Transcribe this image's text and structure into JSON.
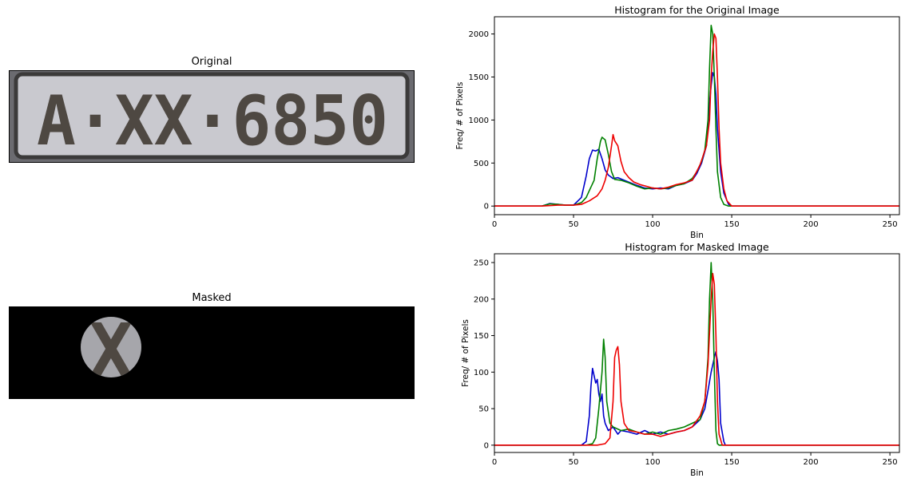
{
  "images": {
    "original": {
      "title": "Original",
      "plate_text": "A·XX·6850"
    },
    "masked": {
      "title": "Masked",
      "plate_text": "X"
    }
  },
  "colors": {
    "blue": "#0000cc",
    "green": "#008000",
    "red": "#ee0000"
  },
  "chart_data": [
    {
      "type": "line",
      "title": "Histogram for the Original Image",
      "xlabel": "Bin",
      "ylabel": "Freq/ # of Pixels",
      "xlim": [
        0,
        256
      ],
      "ylim": [
        -100,
        2200
      ],
      "xticks": [
        0,
        50,
        100,
        150,
        200,
        250
      ],
      "yticks": [
        0,
        500,
        1000,
        1500,
        2000
      ],
      "series": [
        {
          "color": "blue",
          "points": [
            [
              0,
              0
            ],
            [
              30,
              0
            ],
            [
              35,
              30
            ],
            [
              40,
              20
            ],
            [
              45,
              10
            ],
            [
              50,
              10
            ],
            [
              55,
              100
            ],
            [
              58,
              350
            ],
            [
              60,
              550
            ],
            [
              62,
              650
            ],
            [
              64,
              640
            ],
            [
              66,
              660
            ],
            [
              68,
              550
            ],
            [
              70,
              420
            ],
            [
              72,
              360
            ],
            [
              75,
              320
            ],
            [
              78,
              330
            ],
            [
              82,
              300
            ],
            [
              86,
              270
            ],
            [
              90,
              240
            ],
            [
              95,
              210
            ],
            [
              100,
              200
            ],
            [
              105,
              210
            ],
            [
              110,
              200
            ],
            [
              115,
              240
            ],
            [
              120,
              260
            ],
            [
              125,
              300
            ],
            [
              128,
              380
            ],
            [
              131,
              500
            ],
            [
              134,
              700
            ],
            [
              136,
              1200
            ],
            [
              137,
              1400
            ],
            [
              138,
              1550
            ],
            [
              139,
              1500
            ],
            [
              140,
              1300
            ],
            [
              141,
              900
            ],
            [
              143,
              400
            ],
            [
              145,
              150
            ],
            [
              148,
              20
            ],
            [
              150,
              0
            ],
            [
              256,
              0
            ]
          ]
        },
        {
          "color": "green",
          "points": [
            [
              0,
              0
            ],
            [
              30,
              0
            ],
            [
              35,
              25
            ],
            [
              40,
              20
            ],
            [
              45,
              10
            ],
            [
              50,
              10
            ],
            [
              55,
              40
            ],
            [
              58,
              100
            ],
            [
              60,
              180
            ],
            [
              63,
              300
            ],
            [
              65,
              550
            ],
            [
              67,
              750
            ],
            [
              68,
              800
            ],
            [
              70,
              770
            ],
            [
              72,
              600
            ],
            [
              74,
              400
            ],
            [
              76,
              310
            ],
            [
              80,
              300
            ],
            [
              85,
              270
            ],
            [
              90,
              230
            ],
            [
              95,
              200
            ],
            [
              100,
              210
            ],
            [
              105,
              200
            ],
            [
              110,
              210
            ],
            [
              115,
              240
            ],
            [
              120,
              260
            ],
            [
              125,
              320
            ],
            [
              128,
              400
            ],
            [
              131,
              520
            ],
            [
              133,
              650
            ],
            [
              135,
              1000
            ],
            [
              136,
              1600
            ],
            [
              137,
              2100
            ],
            [
              138,
              2000
            ],
            [
              139,
              1500
            ],
            [
              140,
              900
            ],
            [
              141,
              400
            ],
            [
              143,
              100
            ],
            [
              145,
              20
            ],
            [
              148,
              0
            ],
            [
              256,
              0
            ]
          ]
        },
        {
          "color": "red",
          "points": [
            [
              0,
              0
            ],
            [
              30,
              0
            ],
            [
              40,
              10
            ],
            [
              50,
              10
            ],
            [
              55,
              20
            ],
            [
              60,
              60
            ],
            [
              65,
              120
            ],
            [
              68,
              200
            ],
            [
              70,
              300
            ],
            [
              72,
              450
            ],
            [
              74,
              700
            ],
            [
              75,
              830
            ],
            [
              76,
              760
            ],
            [
              78,
              700
            ],
            [
              80,
              520
            ],
            [
              82,
              400
            ],
            [
              85,
              330
            ],
            [
              88,
              280
            ],
            [
              92,
              250
            ],
            [
              96,
              230
            ],
            [
              100,
              210
            ],
            [
              105,
              200
            ],
            [
              110,
              220
            ],
            [
              115,
              250
            ],
            [
              120,
              270
            ],
            [
              125,
              300
            ],
            [
              130,
              480
            ],
            [
              134,
              700
            ],
            [
              136,
              1000
            ],
            [
              137,
              1500
            ],
            [
              138,
              1800
            ],
            [
              139,
              2000
            ],
            [
              140,
              1950
            ],
            [
              141,
              1500
            ],
            [
              142,
              900
            ],
            [
              143,
              500
            ],
            [
              145,
              200
            ],
            [
              147,
              60
            ],
            [
              150,
              0
            ],
            [
              256,
              0
            ]
          ]
        }
      ]
    },
    {
      "type": "line",
      "title": "Histogram for Masked Image",
      "xlabel": "Bin",
      "ylabel": "Freq/ # of Pixels",
      "xlim": [
        0,
        256
      ],
      "ylim": [
        -10,
        262
      ],
      "xticks": [
        0,
        50,
        100,
        150,
        200,
        250
      ],
      "yticks": [
        0,
        50,
        100,
        150,
        200,
        250
      ],
      "series": [
        {
          "color": "blue",
          "points": [
            [
              0,
              0
            ],
            [
              55,
              0
            ],
            [
              58,
              5
            ],
            [
              60,
              40
            ],
            [
              61,
              80
            ],
            [
              62,
              105
            ],
            [
              63,
              95
            ],
            [
              64,
              85
            ],
            [
              65,
              90
            ],
            [
              66,
              70
            ],
            [
              67,
              60
            ],
            [
              68,
              70
            ],
            [
              69,
              40
            ],
            [
              70,
              30
            ],
            [
              72,
              20
            ],
            [
              75,
              25
            ],
            [
              78,
              15
            ],
            [
              80,
              20
            ],
            [
              85,
              18
            ],
            [
              90,
              15
            ],
            [
              95,
              20
            ],
            [
              100,
              15
            ],
            [
              105,
              18
            ],
            [
              110,
              15
            ],
            [
              115,
              18
            ],
            [
              120,
              20
            ],
            [
              125,
              25
            ],
            [
              130,
              35
            ],
            [
              133,
              50
            ],
            [
              135,
              75
            ],
            [
              137,
              100
            ],
            [
              139,
              120
            ],
            [
              140,
              128
            ],
            [
              141,
              115
            ],
            [
              142,
              90
            ],
            [
              143,
              30
            ],
            [
              145,
              5
            ],
            [
              146,
              0
            ],
            [
              256,
              0
            ]
          ]
        },
        {
          "color": "green",
          "points": [
            [
              0,
              0
            ],
            [
              58,
              0
            ],
            [
              62,
              2
            ],
            [
              64,
              10
            ],
            [
              66,
              50
            ],
            [
              68,
              100
            ],
            [
              69,
              145
            ],
            [
              70,
              120
            ],
            [
              71,
              60
            ],
            [
              73,
              30
            ],
            [
              75,
              25
            ],
            [
              80,
              20
            ],
            [
              85,
              22
            ],
            [
              90,
              18
            ],
            [
              95,
              15
            ],
            [
              100,
              18
            ],
            [
              105,
              15
            ],
            [
              110,
              20
            ],
            [
              115,
              22
            ],
            [
              120,
              25
            ],
            [
              125,
              30
            ],
            [
              130,
              35
            ],
            [
              133,
              60
            ],
            [
              135,
              120
            ],
            [
              136,
              200
            ],
            [
              137,
              250
            ],
            [
              138,
              200
            ],
            [
              139,
              100
            ],
            [
              140,
              20
            ],
            [
              141,
              2
            ],
            [
              142,
              0
            ],
            [
              256,
              0
            ]
          ]
        },
        {
          "color": "red",
          "points": [
            [
              0,
              0
            ],
            [
              65,
              0
            ],
            [
              70,
              2
            ],
            [
              73,
              10
            ],
            [
              75,
              60
            ],
            [
              76,
              120
            ],
            [
              77,
              130
            ],
            [
              78,
              135
            ],
            [
              79,
              110
            ],
            [
              80,
              60
            ],
            [
              82,
              30
            ],
            [
              85,
              20
            ],
            [
              90,
              18
            ],
            [
              95,
              15
            ],
            [
              100,
              15
            ],
            [
              105,
              12
            ],
            [
              110,
              15
            ],
            [
              115,
              18
            ],
            [
              120,
              20
            ],
            [
              125,
              25
            ],
            [
              130,
              40
            ],
            [
              133,
              60
            ],
            [
              135,
              110
            ],
            [
              137,
              200
            ],
            [
              138,
              235
            ],
            [
              139,
              220
            ],
            [
              140,
              150
            ],
            [
              141,
              60
            ],
            [
              142,
              15
            ],
            [
              144,
              0
            ],
            [
              256,
              0
            ]
          ]
        }
      ]
    }
  ]
}
